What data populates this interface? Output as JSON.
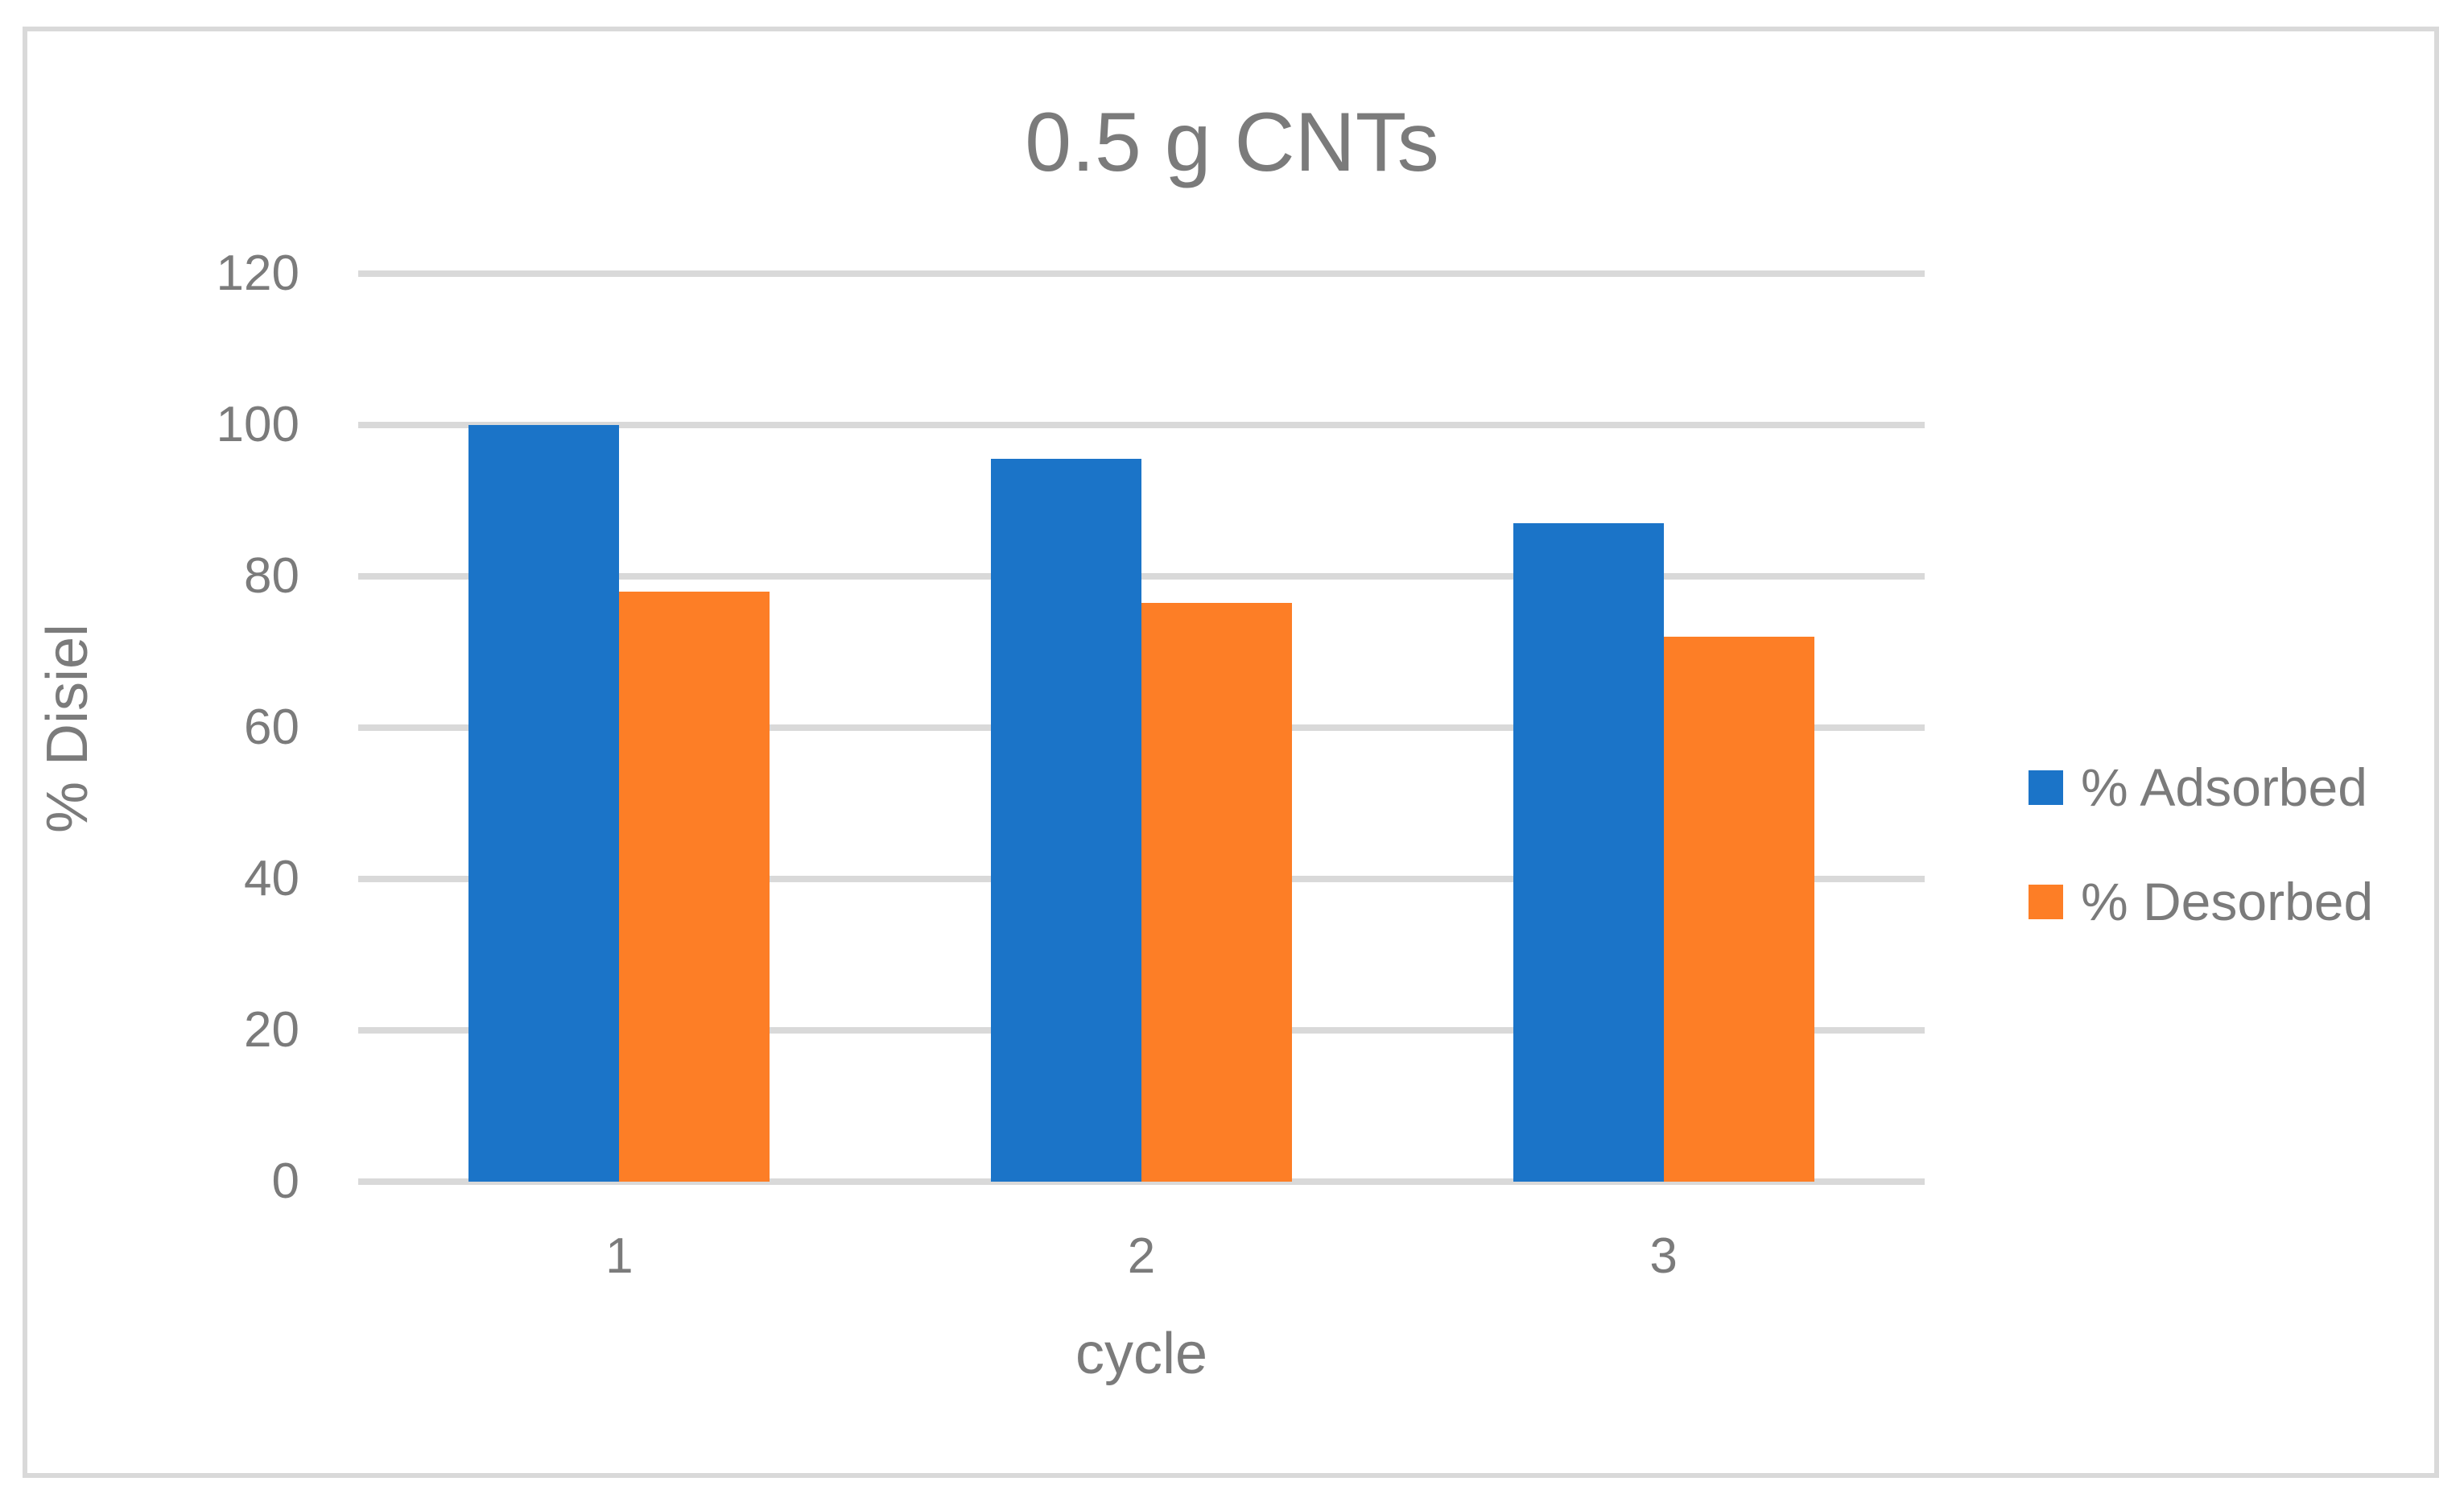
{
  "chart_data": {
    "type": "bar",
    "title": "0.5 g CNTs",
    "xlabel": "cycle",
    "ylabel": "% Disiel",
    "categories": [
      "1",
      "2",
      "3"
    ],
    "series": [
      {
        "name": "% Adsorbed",
        "color": "#1B74C8",
        "values": [
          100,
          95.5,
          87
        ]
      },
      {
        "name": "% Desorbed",
        "color": "#FD7E26",
        "values": [
          78,
          76.5,
          72
        ]
      }
    ],
    "ylim": [
      0,
      120
    ],
    "yticks": [
      0,
      20,
      40,
      60,
      80,
      100,
      120
    ],
    "grid": "horizontal-only",
    "gridline_color": "#D9D9D9",
    "frame_border_color": "#D9D9D9",
    "text_color": "#7B7B7B",
    "legend_position": "right"
  }
}
